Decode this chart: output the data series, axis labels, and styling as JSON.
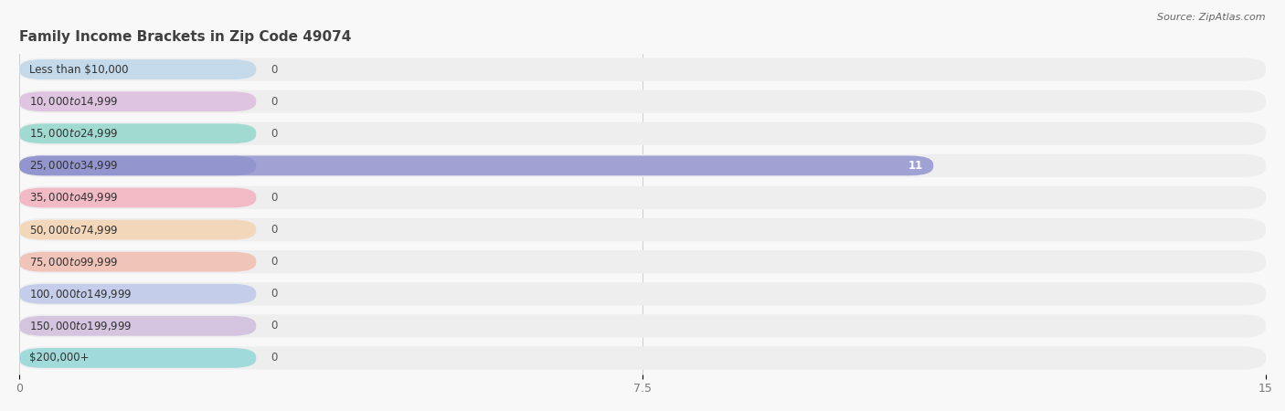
{
  "title": "Family Income Brackets in Zip Code 49074",
  "source_text": "Source: ZipAtlas.com",
  "categories": [
    "Less than $10,000",
    "$10,000 to $14,999",
    "$15,000 to $24,999",
    "$25,000 to $34,999",
    "$35,000 to $49,999",
    "$50,000 to $74,999",
    "$75,000 to $99,999",
    "$100,000 to $149,999",
    "$150,000 to $199,999",
    "$200,000+"
  ],
  "values": [
    0,
    0,
    0,
    11,
    0,
    0,
    0,
    0,
    0,
    0
  ],
  "bar_colors": [
    "#a8cce8",
    "#d4a8d8",
    "#6ecebe",
    "#8b8fcc",
    "#f498a8",
    "#f8c898",
    "#f4a898",
    "#a8b8e8",
    "#c4a8d8",
    "#6ecece"
  ],
  "background_color": "#f8f8f8",
  "xlim": [
    0,
    15
  ],
  "xticks": [
    0,
    7.5,
    15
  ],
  "title_fontsize": 11,
  "label_fontsize": 8.5,
  "value_fontsize": 8.5
}
